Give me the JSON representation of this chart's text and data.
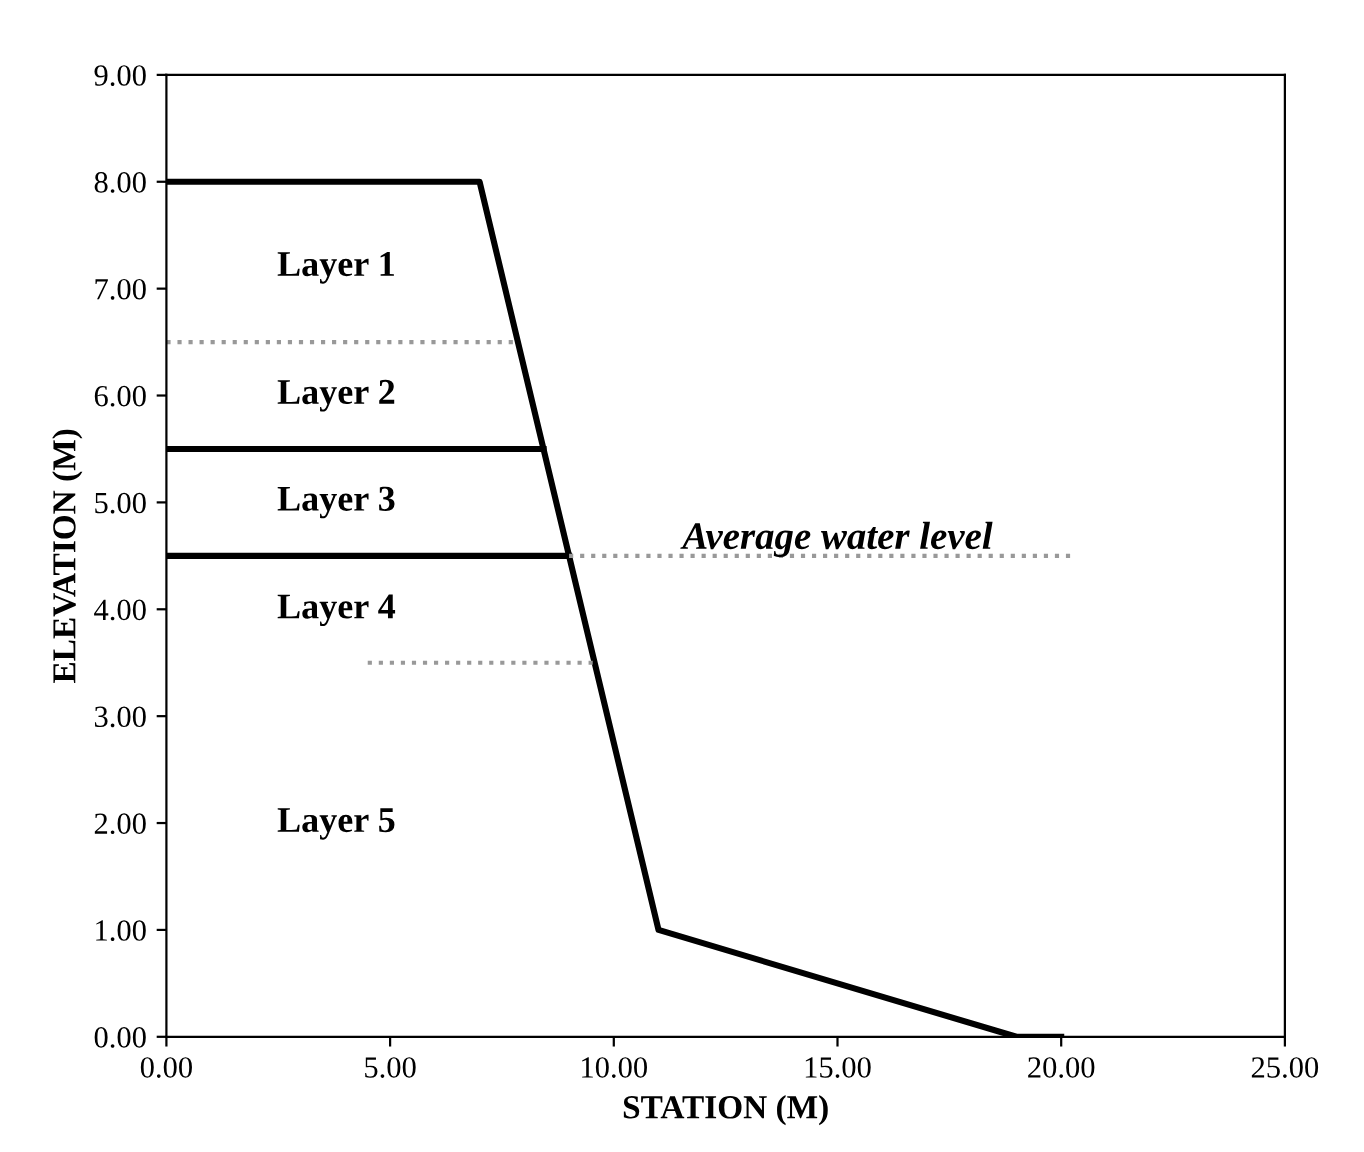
{
  "chart_data": {
    "type": "line",
    "xlabel": "STATION (M)",
    "ylabel": "ELEVATION (M)",
    "xlim": [
      0,
      25
    ],
    "ylim": [
      0,
      9
    ],
    "xticks": [
      {
        "value": 0,
        "label": "0.00"
      },
      {
        "value": 5,
        "label": "5.00"
      },
      {
        "value": 10,
        "label": "10.00"
      },
      {
        "value": 15,
        "label": "15.00"
      },
      {
        "value": 20,
        "label": "20.00"
      },
      {
        "value": 25,
        "label": "25.00"
      }
    ],
    "yticks": [
      {
        "value": 0,
        "label": "0.00"
      },
      {
        "value": 1,
        "label": "1.00"
      },
      {
        "value": 2,
        "label": "2.00"
      },
      {
        "value": 3,
        "label": "3.00"
      },
      {
        "value": 4,
        "label": "4.00"
      },
      {
        "value": 5,
        "label": "5.00"
      },
      {
        "value": 6,
        "label": "6.00"
      },
      {
        "value": 7,
        "label": "7.00"
      },
      {
        "value": 8,
        "label": "8.00"
      },
      {
        "value": 9,
        "label": "9.00"
      }
    ],
    "grid": false,
    "marker": "none",
    "series": [
      {
        "color": "#000000",
        "line_style": "solid",
        "x": [
          0,
          7,
          11,
          19,
          20
        ],
        "values": [
          8,
          8,
          1,
          0,
          0
        ]
      },
      {
        "color": "#999999",
        "line_style": "dotted",
        "x": [
          0,
          7.86
        ],
        "values": [
          6.5,
          6.5
        ]
      },
      {
        "color": "#000000",
        "line_style": "solid",
        "x": [
          0,
          8.43
        ],
        "values": [
          5.5,
          5.5
        ]
      },
      {
        "color": "#000000",
        "line_style": "solid",
        "x": [
          0,
          9
        ],
        "values": [
          4.5,
          4.5
        ]
      },
      {
        "color": "#999999",
        "line_style": "dotted",
        "x": [
          4.5,
          9.57
        ],
        "values": [
          3.5,
          3.5
        ]
      },
      {
        "color": "#999999",
        "line_style": "dotted",
        "x": [
          9,
          20.3
        ],
        "values": [
          4.5,
          4.5
        ]
      }
    ],
    "annotations": [
      "Layer 1",
      "Layer 2",
      "Layer 3",
      "Layer 4",
      "Layer 5",
      "Average water level"
    ]
  }
}
